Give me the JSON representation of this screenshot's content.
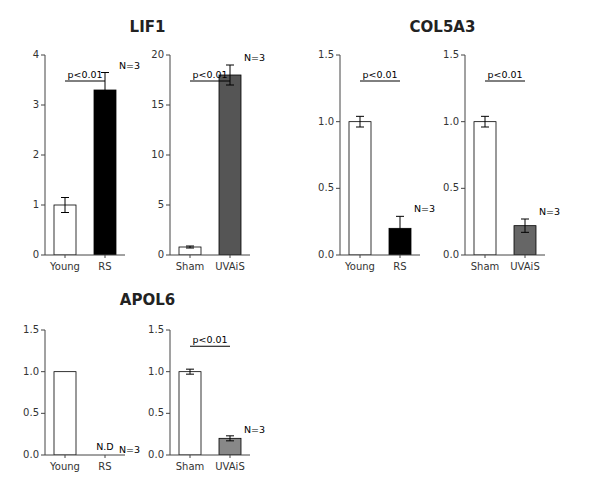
{
  "chart_data": [
    {
      "type": "bar",
      "title": "LIF1",
      "categories": [
        "Young",
        "RS"
      ],
      "values": [
        1.0,
        3.3
      ],
      "errors": [
        0.15,
        0.35
      ],
      "colors": [
        "#ffffff",
        "#000000"
      ],
      "ylim": [
        0,
        4
      ],
      "yticks": [
        0,
        1,
        2,
        3,
        4
      ],
      "annotations": [
        {
          "kind": "bracket",
          "text": "p<0.01"
        },
        {
          "kind": "n",
          "text": "N=3"
        }
      ]
    },
    {
      "type": "bar",
      "categories": [
        "Sham",
        "UVAiS"
      ],
      "values": [
        0.8,
        18.0
      ],
      "errors": [
        0.1,
        1.0
      ],
      "colors": [
        "#ffffff",
        "#555555"
      ],
      "ylim": [
        0,
        20
      ],
      "yticks": [
        0,
        5,
        10,
        15,
        20
      ],
      "annotations": [
        {
          "kind": "bracket",
          "text": "p<0.01"
        },
        {
          "kind": "n",
          "text": "N=3"
        }
      ]
    },
    {
      "type": "bar",
      "title": "COL5A3",
      "categories": [
        "Young",
        "RS"
      ],
      "values": [
        1.0,
        0.2
      ],
      "errors": [
        0.04,
        0.09
      ],
      "colors": [
        "#ffffff",
        "#000000"
      ],
      "ylim": [
        0,
        1.5
      ],
      "yticks": [
        {
          "value": 0,
          "label": "0.0"
        },
        {
          "value": 0.5,
          "label": "0.5"
        },
        {
          "value": 1,
          "label": "1.0"
        },
        {
          "value": 1.5,
          "label": "1.5"
        }
      ],
      "annotations": [
        {
          "kind": "bracket",
          "text": "p<0.01"
        },
        {
          "kind": "n",
          "text": "N=3"
        }
      ]
    },
    {
      "type": "bar",
      "categories": [
        "Sham",
        "UVAiS"
      ],
      "values": [
        1.0,
        0.22
      ],
      "errors": [
        0.04,
        0.05
      ],
      "colors": [
        "#ffffff",
        "#666666"
      ],
      "ylim": [
        0,
        1.5
      ],
      "yticks": [
        {
          "value": 0,
          "label": "0.0"
        },
        {
          "value": 0.5,
          "label": "0.5"
        },
        {
          "value": 1,
          "label": "1.0"
        },
        {
          "value": 1.5,
          "label": "1.5"
        }
      ],
      "annotations": [
        {
          "kind": "bracket",
          "text": "p<0.01"
        },
        {
          "kind": "n",
          "text": "N=3"
        }
      ]
    },
    {
      "type": "bar",
      "title": "APOL6",
      "categories": [
        "Young",
        "RS"
      ],
      "values": [
        1.0,
        0.0
      ],
      "errors": [
        0.0,
        0.0
      ],
      "colors": [
        "#ffffff",
        "#ffffff"
      ],
      "ylim": [
        0,
        1.5
      ],
      "yticks": [
        {
          "value": 0,
          "label": "0.0"
        },
        {
          "value": 0.5,
          "label": "0.5"
        },
        {
          "value": 1,
          "label": "1.0"
        },
        {
          "value": 1.5,
          "label": "1.5"
        }
      ],
      "annotations": [
        {
          "kind": "n",
          "text": "N=3"
        },
        {
          "kind": "nd",
          "text": "N.D"
        }
      ]
    },
    {
      "type": "bar",
      "categories": [
        "Sham",
        "UVAiS"
      ],
      "values": [
        1.0,
        0.2
      ],
      "errors": [
        0.03,
        0.03
      ],
      "colors": [
        "#ffffff",
        "#888888"
      ],
      "ylim": [
        0,
        1.5
      ],
      "yticks": [
        {
          "value": 0,
          "label": "0.0"
        },
        {
          "value": 0.5,
          "label": "0.5"
        },
        {
          "value": 1,
          "label": "1.0"
        },
        {
          "value": 1.5,
          "label": "1.5"
        }
      ],
      "annotations": [
        {
          "kind": "bracket",
          "text": "p<0.01"
        },
        {
          "kind": "n",
          "text": "N=3"
        }
      ]
    }
  ]
}
